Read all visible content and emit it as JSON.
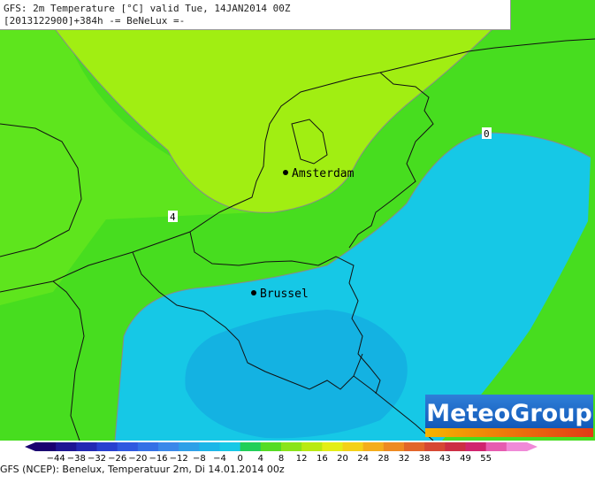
{
  "header": {
    "line1": "GFS: 2m Temperature [°C] valid Tue, 14JAN2014 00Z",
    "line2": "[2013122900]+384h -= BeNeLux =-"
  },
  "map": {
    "cities": [
      "Amsterdam",
      "Brussel"
    ],
    "contour_labels": [
      "4",
      "0"
    ]
  },
  "legend": {
    "ticks": [
      "-44",
      "-38",
      "-32",
      "-26",
      "-20",
      "-16",
      "-12",
      "-8",
      "-4",
      "0",
      "4",
      "8",
      "12",
      "16",
      "20",
      "24",
      "28",
      "32",
      "38",
      "43",
      "49",
      "55"
    ],
    "colors": [
      "#1a0070",
      "#1e1593",
      "#2329b3",
      "#2840d0",
      "#2f58e0",
      "#3470e6",
      "#3a88ea",
      "#2ea0e8",
      "#1cb6e8",
      "#16c8e6",
      "#22cf58",
      "#55dc24",
      "#8ae41a",
      "#b9ea12",
      "#e4ee16",
      "#f4d118",
      "#f4ad1c",
      "#ee8a22",
      "#e2662a",
      "#d64834",
      "#cc2e44",
      "#d0246e",
      "#e65cb0",
      "#f08ad8"
    ]
  },
  "logo": {
    "text": "MeteoGroup"
  },
  "footer": {
    "caption": "GFS (NCEP): Benelux, Temperatuur 2m, Di 14.01.2014 00z"
  }
}
